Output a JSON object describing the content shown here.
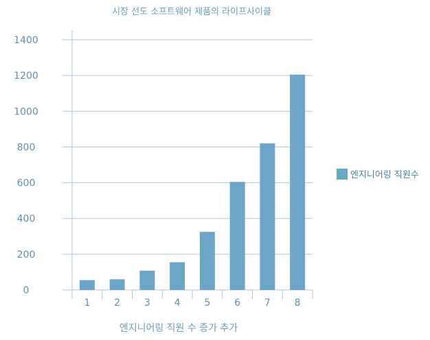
{
  "chart_data": {
    "type": "bar",
    "title": "시장 선도 소프트웨어 제품의 라이프사이클",
    "xlabel": "엔지니어링 직원 수 증가 추가",
    "ylabel": "",
    "categories": [
      "1",
      "2",
      "3",
      "4",
      "5",
      "6",
      "7",
      "8"
    ],
    "y_ticks": [
      "0",
      "200",
      "400",
      "600",
      "800",
      "1000",
      "1200",
      "1400"
    ],
    "ylim": [
      0,
      1400
    ],
    "grid": true,
    "legend_position": "right",
    "series": [
      {
        "name": "엔지니어링 직원수",
        "color": "#6da5c8",
        "values": [
          55,
          60,
          108,
          155,
          325,
          605,
          820,
          1205
        ]
      }
    ]
  }
}
